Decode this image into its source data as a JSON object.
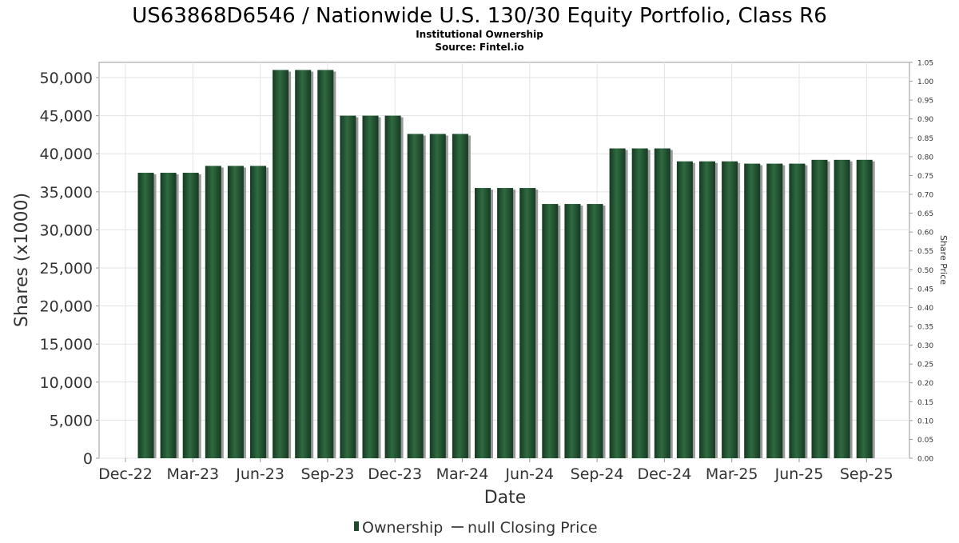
{
  "chart_data": {
    "type": "bar",
    "title": "US63868D6546 / Nationwide U.S. 130/30 Equity Portfolio, Class R6",
    "subtitle_lines": [
      "Institutional Ownership",
      "Source: Fintel.io"
    ],
    "xlabel": "Date",
    "ylabel": "Shares (x1000)",
    "y2label": "Share Price",
    "ylim": [
      0,
      52000
    ],
    "y2lim": [
      0,
      1.05
    ],
    "yticks": [
      0,
      5000,
      10000,
      15000,
      20000,
      25000,
      30000,
      35000,
      40000,
      45000,
      50000
    ],
    "ytick_labels": [
      "0",
      "5,000",
      "10,000",
      "15,000",
      "20,000",
      "25,000",
      "30,000",
      "35,000",
      "40,000",
      "45,000",
      "50,000"
    ],
    "y2ticks": [
      0,
      0.05,
      0.1,
      0.15,
      0.2,
      0.25,
      0.3,
      0.35,
      0.4,
      0.45,
      0.5,
      0.55,
      0.6,
      0.65,
      0.7,
      0.75,
      0.8,
      0.85,
      0.9,
      0.95,
      1.0,
      1.05
    ],
    "y2tick_labels": [
      "0.00",
      "0.05",
      "0.10",
      "0.15",
      "0.20",
      "0.25",
      "0.30",
      "0.35",
      "0.40",
      "0.45",
      "0.50",
      "0.55",
      "0.60",
      "0.65",
      "0.70",
      "0.75",
      "0.80",
      "0.85",
      "0.90",
      "0.95",
      "1.00",
      "1.05"
    ],
    "xticks": [
      "Dec-22",
      "Mar-23",
      "Jun-23",
      "Sep-23",
      "Dec-23",
      "Mar-24",
      "Jun-24",
      "Sep-24",
      "Dec-24",
      "Mar-25",
      "Jun-25",
      "Sep-25"
    ],
    "grid": true,
    "legend_position": "bottom",
    "series": [
      {
        "name": "Ownership",
        "color": "#1f4a2c",
        "values": [
          37500,
          37500,
          37500,
          38400,
          38400,
          38400,
          51000,
          51000,
          51000,
          45000,
          45000,
          45000,
          42600,
          42600,
          42600,
          35500,
          35500,
          35500,
          33400,
          33400,
          33400,
          40700,
          40700,
          40700,
          39000,
          39000,
          39000,
          38700,
          38700,
          38700,
          39200,
          39200,
          39200
        ]
      },
      {
        "name": "null Closing Price",
        "color": "#555555",
        "values": []
      }
    ]
  }
}
